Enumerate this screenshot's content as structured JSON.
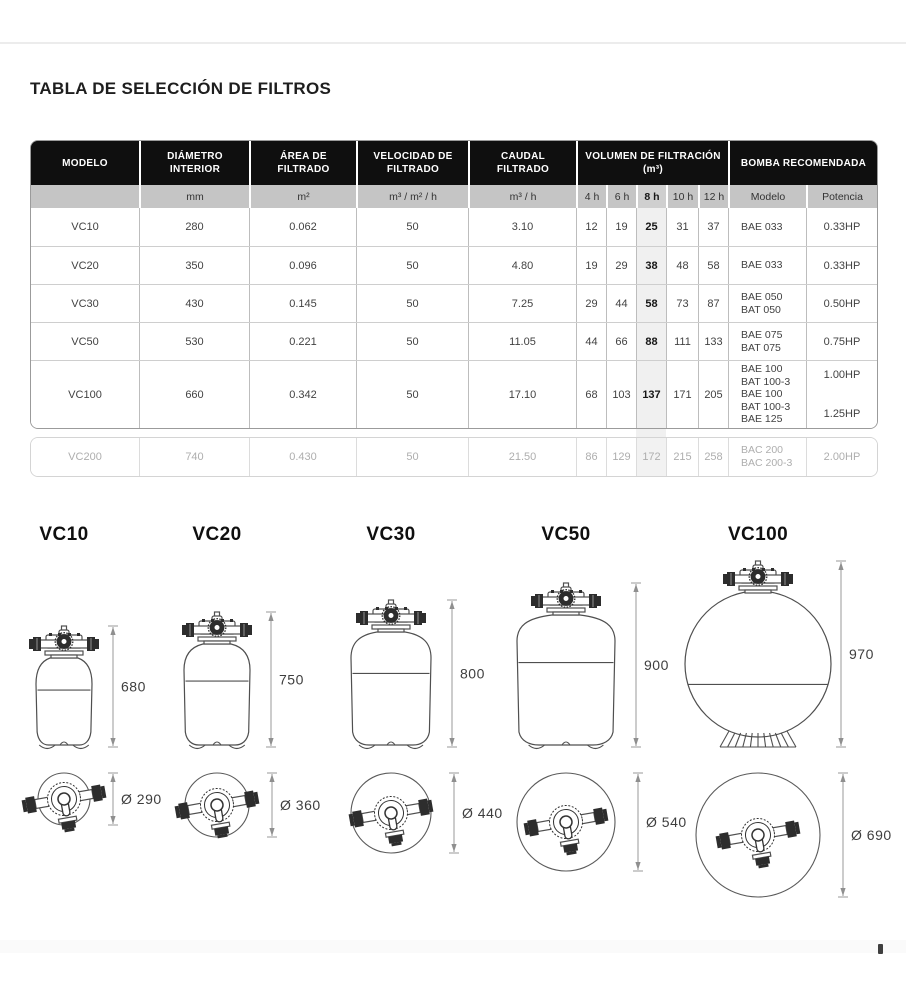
{
  "page": {
    "title": "TABLA DE SELECCIÓN DE FILTROS"
  },
  "colors": {
    "header_bg": "#0f0f0f",
    "header_text": "#ffffff",
    "subheader_bg": "#c5c5c5",
    "highlight_col": "#f0f0f0",
    "disabled_text": "#aeaeae"
  },
  "table": {
    "header": {
      "groups": [
        {
          "label": "MODELO",
          "span": 1
        },
        {
          "label": "DIÁMETRO INTERIOR",
          "span": 1
        },
        {
          "label": "ÁREA DE FILTRADO",
          "span": 1
        },
        {
          "label": "VELOCIDAD DE FILTRADO",
          "span": 1
        },
        {
          "label": "CAUDAL FILTRADO",
          "span": 1
        },
        {
          "label": "VOLUMEN DE FILTRACIÓN (m³)",
          "span": 5
        },
        {
          "label": "BOMBA RECOMENDADA",
          "span": 2
        }
      ],
      "units": [
        "",
        "mm",
        "m²",
        "m³ / m² / h",
        "m³ / h",
        "4 h",
        "6 h",
        "8 h",
        "10 h",
        "12 h",
        "Modelo",
        "Potencia"
      ]
    },
    "highlight": {
      "unit_index": 7,
      "volumen_index": 2
    },
    "rows": [
      {
        "model": "VC10",
        "values": [
          "280",
          "0.062",
          "50",
          "3.10"
        ],
        "volumen": [
          "12",
          "19",
          "25",
          "31",
          "37"
        ],
        "pump_models": [
          "BAE 033"
        ],
        "pump_power": [
          "0.33HP"
        ],
        "disabled": false
      },
      {
        "model": "VC20",
        "values": [
          "350",
          "0.096",
          "50",
          "4.80"
        ],
        "volumen": [
          "19",
          "29",
          "38",
          "48",
          "58"
        ],
        "pump_models": [
          "BAE 033"
        ],
        "pump_power": [
          "0.33HP"
        ],
        "disabled": false
      },
      {
        "model": "VC30",
        "values": [
          "430",
          "0.145",
          "50",
          "7.25"
        ],
        "volumen": [
          "29",
          "44",
          "58",
          "73",
          "87"
        ],
        "pump_models": [
          "BAE 050",
          "BAT 050"
        ],
        "pump_power": [
          "0.50HP"
        ],
        "disabled": false
      },
      {
        "model": "VC50",
        "values": [
          "530",
          "0.221",
          "50",
          "11.05"
        ],
        "volumen": [
          "44",
          "66",
          "88",
          "111",
          "133"
        ],
        "pump_models": [
          "BAE 075",
          "BAT 075"
        ],
        "pump_power": [
          "0.75HP"
        ],
        "disabled": false
      },
      {
        "model": "VC100",
        "values": [
          "660",
          "0.342",
          "50",
          "17.10"
        ],
        "volumen": [
          "68",
          "103",
          "137",
          "171",
          "205"
        ],
        "pump_models": [
          "BAE 100",
          "BAT 100-3",
          "BAE 100",
          "BAT 100-3",
          "BAE 125"
        ],
        "pump_power": [
          "1.00HP",
          "1.25HP"
        ],
        "disabled": false
      },
      {
        "model": "VC200",
        "values": [
          "740",
          "0.430",
          "50",
          "21.50"
        ],
        "volumen": [
          "86",
          "129",
          "172",
          "215",
          "258"
        ],
        "pump_models": [
          "BAC 200",
          "BAC 200-3"
        ],
        "pump_power": [
          "2.00HP"
        ],
        "disabled": true
      }
    ]
  },
  "diagrams": [
    {
      "model": "VC10",
      "height_mm": 680,
      "height_label": "680",
      "diameter_mm": 290,
      "diameter_label": "Ø 290"
    },
    {
      "model": "VC20",
      "height_mm": 750,
      "height_label": "750",
      "diameter_mm": 360,
      "diameter_label": "Ø 360"
    },
    {
      "model": "VC30",
      "height_mm": 800,
      "height_label": "800",
      "diameter_mm": 440,
      "diameter_label": "Ø 440"
    },
    {
      "model": "VC50",
      "height_mm": 900,
      "height_label": "900",
      "diameter_mm": 540,
      "diameter_label": "Ø 540"
    },
    {
      "model": "VC100",
      "height_mm": 970,
      "height_label": "970",
      "diameter_mm": 690,
      "diameter_label": "Ø 690"
    }
  ]
}
